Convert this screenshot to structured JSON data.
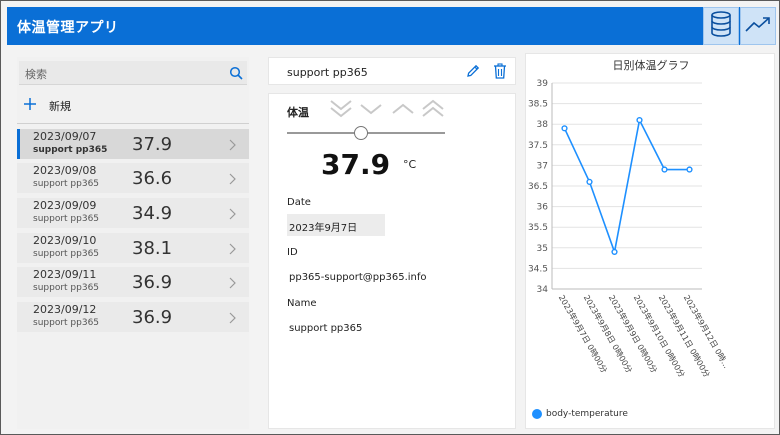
{
  "app": {
    "title": "体温管理アプリ"
  },
  "search": {
    "placeholder": "検索"
  },
  "list": {
    "new_label": "新規",
    "items": [
      {
        "date": "2023/09/07",
        "user": "support pp365",
        "temp": "37.9",
        "selected": true
      },
      {
        "date": "2023/09/08",
        "user": "support pp365",
        "temp": "36.6"
      },
      {
        "date": "2023/09/09",
        "user": "support pp365",
        "temp": "34.9"
      },
      {
        "date": "2023/09/10",
        "user": "support pp365",
        "temp": "38.1"
      },
      {
        "date": "2023/09/11",
        "user": "support pp365",
        "temp": "36.9"
      },
      {
        "date": "2023/09/12",
        "user": "support pp365",
        "temp": "36.9"
      }
    ]
  },
  "detail": {
    "title": "support pp365",
    "temp_label": "体温",
    "temp_value": "37.9",
    "temp_unit": "°C",
    "slider_level": 0.47,
    "date_label": "Date",
    "date_value": "2023年9月7日",
    "id_label": "ID",
    "id_value": "pp365-support@pp365.info",
    "name_label": "Name",
    "name_value": "support pp365"
  },
  "chart_data": {
    "type": "line",
    "title": "日別体温グラフ",
    "categories": [
      "2023年9月7日 0時00分",
      "2023年9月8日 0時00分",
      "2023年9月9日 0時00分",
      "2023年9月10日 0時00分",
      "2023年9月11日 0時00分",
      "2023年9月12日 0時..."
    ],
    "series": [
      {
        "name": "body-temperature",
        "values": [
          37.9,
          36.6,
          34.9,
          38.1,
          36.9,
          36.9
        ],
        "color": "#1e90ff"
      }
    ],
    "ylim": [
      34,
      39
    ],
    "yticks": [
      "34",
      "34.5",
      "35",
      "35.5",
      "36",
      "36.5",
      "37",
      "37.5",
      "38",
      "38.5",
      "39"
    ],
    "grid": true,
    "legend": "bottom-left"
  },
  "colors": {
    "accent": "#0a6fd6",
    "series": "#1e90ff"
  }
}
